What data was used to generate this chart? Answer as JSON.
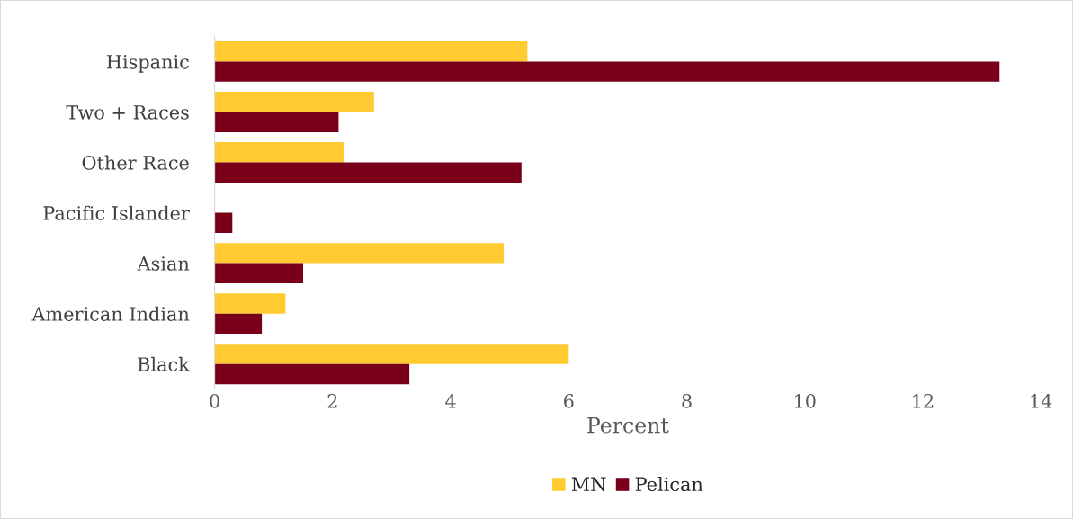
{
  "chart_data": {
    "type": "bar",
    "orientation": "horizontal",
    "xlabel": "Percent",
    "categories": [
      "Hispanic",
      "Two + Races",
      "Other Race",
      "Pacific Islander",
      "Asian",
      "American Indian",
      "Black"
    ],
    "series": [
      {
        "name": "MN",
        "color": "#ffcb31",
        "values": [
          5.3,
          2.7,
          2.2,
          null,
          4.9,
          1.2,
          6.0
        ]
      },
      {
        "name": "Pelican",
        "color": "#7a0019",
        "values": [
          13.3,
          2.1,
          5.2,
          0.3,
          1.5,
          0.8,
          3.3
        ]
      }
    ],
    "xlim": [
      0,
      14
    ],
    "xticks": [
      0,
      2,
      4,
      6,
      8,
      10,
      12,
      14
    ],
    "grid": false,
    "legend": "bottom"
  }
}
